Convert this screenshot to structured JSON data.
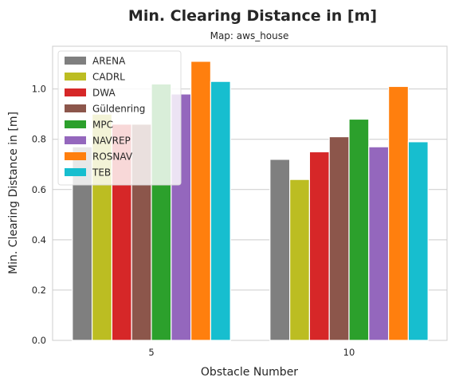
{
  "chart_data": {
    "type": "bar",
    "title": "Min. Clearing Distance in [m]",
    "subtitle": "Map: aws_house",
    "xlabel": "Obstacle Number",
    "ylabel": "Min. Clearing Distance in [m]",
    "categories": [
      "5",
      "10"
    ],
    "ylim": [
      0,
      1.17
    ],
    "yticks": [
      "0.0",
      "0.2",
      "0.4",
      "0.6",
      "0.8",
      "1.0"
    ],
    "grid": true,
    "legend_position": "top-left",
    "series": [
      {
        "name": "ARENA",
        "color": "#7f7f7f",
        "values": [
          0.77,
          0.72
        ]
      },
      {
        "name": "CADRL",
        "color": "#bcbd22",
        "values": [
          0.9,
          0.64
        ]
      },
      {
        "name": "DWA",
        "color": "#d62728",
        "values": [
          0.86,
          0.75
        ]
      },
      {
        "name": "Güldenring",
        "color": "#8c564b",
        "values": [
          0.86,
          0.81
        ]
      },
      {
        "name": "MPC",
        "color": "#2ca02c",
        "values": [
          1.02,
          0.88
        ]
      },
      {
        "name": "NAVREP",
        "color": "#9467bd",
        "values": [
          0.98,
          0.77
        ]
      },
      {
        "name": "ROSNAV",
        "color": "#ff7f0e",
        "values": [
          1.11,
          1.01
        ]
      },
      {
        "name": "TEB",
        "color": "#17becf",
        "values": [
          1.03,
          0.79
        ]
      }
    ]
  }
}
